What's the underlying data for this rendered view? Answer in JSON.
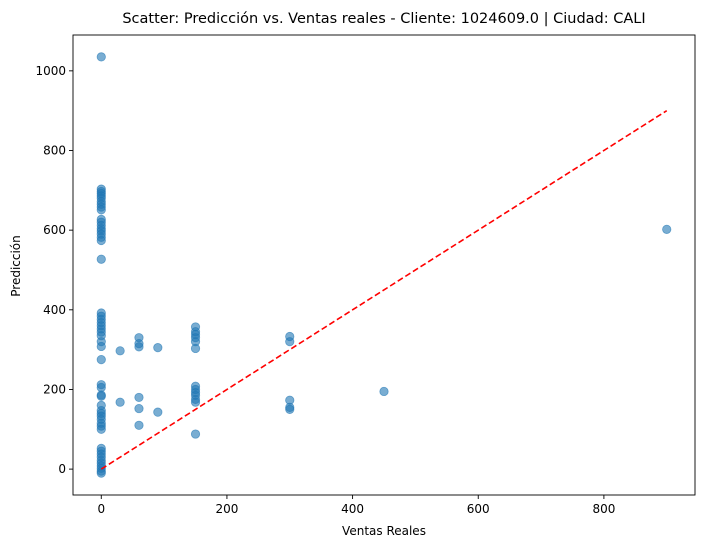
{
  "chart_data": {
    "type": "scatter",
    "title": "Scatter: Predicción vs. Ventas reales - Cliente: 1024609.0 | Ciudad: CALI",
    "xlabel": "Ventas Reales",
    "ylabel": "Predicción",
    "xlim": [
      -45,
      945
    ],
    "ylim": [
      -65,
      1090
    ],
    "xticks": [
      0,
      200,
      400,
      600,
      800
    ],
    "yticks": [
      0,
      200,
      400,
      600,
      800,
      1000
    ],
    "xtick_labels": [
      "0",
      "200",
      "400",
      "600",
      "800"
    ],
    "ytick_labels": [
      "0",
      "200",
      "400",
      "600",
      "800",
      "1000"
    ],
    "grid": false,
    "point_color": "#1f77b4",
    "point_alpha": 0.6,
    "points": [
      [
        0,
        1035
      ],
      [
        0,
        703
      ],
      [
        0,
        697
      ],
      [
        0,
        692
      ],
      [
        0,
        686
      ],
      [
        0,
        680
      ],
      [
        0,
        672
      ],
      [
        0,
        665
      ],
      [
        0,
        658
      ],
      [
        0,
        651
      ],
      [
        0,
        627
      ],
      [
        0,
        620
      ],
      [
        0,
        612
      ],
      [
        0,
        604
      ],
      [
        0,
        598
      ],
      [
        0,
        590
      ],
      [
        0,
        582
      ],
      [
        0,
        574
      ],
      [
        0,
        527
      ],
      [
        0,
        392
      ],
      [
        0,
        384
      ],
      [
        0,
        376
      ],
      [
        0,
        368
      ],
      [
        0,
        360
      ],
      [
        0,
        352
      ],
      [
        0,
        344
      ],
      [
        0,
        335
      ],
      [
        0,
        320
      ],
      [
        0,
        308
      ],
      [
        0,
        275
      ],
      [
        0,
        212
      ],
      [
        0,
        205
      ],
      [
        0,
        186
      ],
      [
        0,
        183
      ],
      [
        0,
        160
      ],
      [
        0,
        147
      ],
      [
        0,
        140
      ],
      [
        0,
        133
      ],
      [
        0,
        125
      ],
      [
        0,
        115
      ],
      [
        0,
        108
      ],
      [
        0,
        100
      ],
      [
        0,
        52
      ],
      [
        0,
        45
      ],
      [
        0,
        38
      ],
      [
        0,
        30
      ],
      [
        0,
        22
      ],
      [
        0,
        15
      ],
      [
        0,
        8
      ],
      [
        0,
        2
      ],
      [
        0,
        -5
      ],
      [
        0,
        -10
      ],
      [
        30,
        297
      ],
      [
        30,
        168
      ],
      [
        60,
        330
      ],
      [
        60,
        315
      ],
      [
        60,
        307
      ],
      [
        60,
        180
      ],
      [
        60,
        152
      ],
      [
        60,
        110
      ],
      [
        90,
        305
      ],
      [
        90,
        143
      ],
      [
        150,
        357
      ],
      [
        150,
        345
      ],
      [
        150,
        338
      ],
      [
        150,
        330
      ],
      [
        150,
        320
      ],
      [
        150,
        303
      ],
      [
        150,
        208
      ],
      [
        150,
        200
      ],
      [
        150,
        192
      ],
      [
        150,
        185
      ],
      [
        150,
        175
      ],
      [
        150,
        168
      ],
      [
        150,
        88
      ],
      [
        300,
        333
      ],
      [
        300,
        320
      ],
      [
        300,
        173
      ],
      [
        300,
        155
      ],
      [
        300,
        150
      ],
      [
        450,
        195
      ],
      [
        900,
        602
      ]
    ],
    "reference_line": {
      "x": [
        0,
        900
      ],
      "y": [
        0,
        900
      ],
      "color": "#ff0000",
      "style": "dashed"
    }
  }
}
